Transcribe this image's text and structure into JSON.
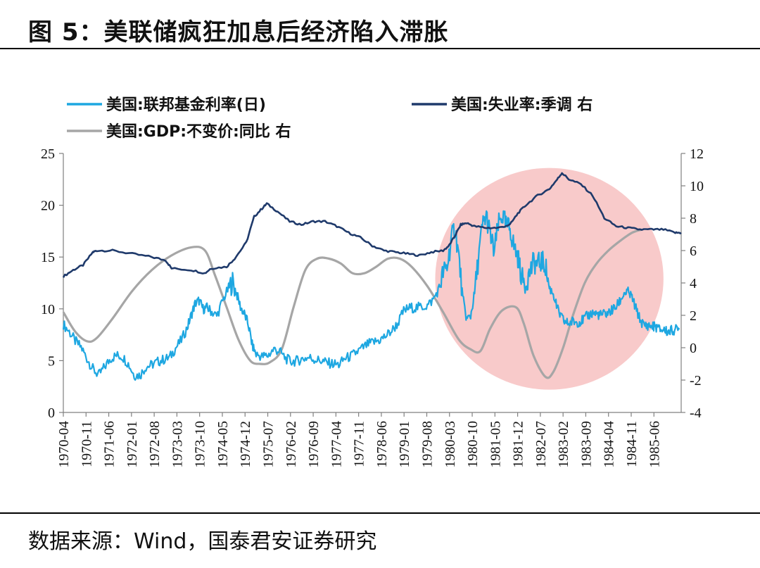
{
  "figure": {
    "title": "图 5：美联储疯狂加息后经济陷入滞胀",
    "source": "数据来源：Wind，国泰君安证券研究"
  },
  "chart_data": {
    "type": "line",
    "colors": {
      "fed_funds": "#1ea7e1",
      "unemployment": "#1f3a6b",
      "gdp": "#a6a6a6",
      "highlight": "#f4a6a6"
    },
    "legend": [
      {
        "key": "fed_funds",
        "label": "美国:联邦基金利率(日)"
      },
      {
        "key": "unemployment",
        "label": "美国:失业率:季调 右"
      },
      {
        "key": "gdp",
        "label": "美国:GDP:不变价:同比 右"
      }
    ],
    "x_tick_labels": [
      "1970-04",
      "1970-11",
      "1971-06",
      "1972-01",
      "1972-08",
      "1973-03",
      "1973-10",
      "1974-05",
      "1974-12",
      "1975-07",
      "1976-02",
      "1976-09",
      "1977-04",
      "1977-11",
      "1978-06",
      "1979-01",
      "1979-08",
      "1980-03",
      "1980-10",
      "1981-05",
      "1981-12",
      "1982-07",
      "1983-02",
      "1983-09",
      "1984-04",
      "1984-11",
      "1985-06"
    ],
    "x_range": [
      1970.25,
      1985.95
    ],
    "left_axis": {
      "ylim": [
        0,
        25
      ],
      "ticks": [
        "0",
        "5",
        "10",
        "15",
        "20",
        "25"
      ]
    },
    "right_axis": {
      "ylim": [
        -4,
        12
      ],
      "ticks": [
        "-4",
        "-2",
        "0",
        "2",
        "4",
        "6",
        "8",
        "10",
        "12"
      ]
    },
    "series": [
      {
        "key": "fed_funds",
        "axis": "left",
        "name": "美国:联邦基金利率(日)",
        "x": [
          1970.25,
          1970.4,
          1970.55,
          1970.7,
          1970.85,
          1971.0,
          1971.15,
          1971.3,
          1971.45,
          1971.6,
          1971.75,
          1971.9,
          1972.05,
          1972.2,
          1972.35,
          1972.5,
          1972.65,
          1972.8,
          1972.95,
          1973.1,
          1973.25,
          1973.4,
          1973.5,
          1973.6,
          1973.7,
          1973.8,
          1973.9,
          1974.0,
          1974.15,
          1974.3,
          1974.45,
          1974.55,
          1974.65,
          1974.75,
          1974.85,
          1974.95,
          1975.05,
          1975.15,
          1975.3,
          1975.45,
          1975.6,
          1975.75,
          1975.9,
          1976.05,
          1976.2,
          1976.35,
          1976.5,
          1976.65,
          1976.8,
          1976.95,
          1977.1,
          1977.25,
          1977.4,
          1977.55,
          1977.7,
          1977.85,
          1978.0,
          1978.15,
          1978.3,
          1978.45,
          1978.6,
          1978.75,
          1978.9,
          1979.05,
          1979.2,
          1979.35,
          1979.5,
          1979.65,
          1979.8,
          1979.9,
          1980.0,
          1980.1,
          1980.2,
          1980.3,
          1980.4,
          1980.5,
          1980.6,
          1980.7,
          1980.8,
          1980.9,
          1981.0,
          1981.1,
          1981.2,
          1981.3,
          1981.4,
          1981.5,
          1981.6,
          1981.7,
          1981.8,
          1981.9,
          1982.0,
          1982.1,
          1982.2,
          1982.3,
          1982.4,
          1982.5,
          1982.6,
          1982.7,
          1982.8,
          1982.9,
          1983.0,
          1983.1,
          1983.2,
          1983.3,
          1983.4,
          1983.5,
          1983.6,
          1983.7,
          1983.8,
          1983.9,
          1984.0,
          1984.1,
          1984.2,
          1984.3,
          1984.4,
          1984.5,
          1984.6,
          1984.7,
          1984.8,
          1984.9,
          1985.0,
          1985.1,
          1985.2,
          1985.3,
          1985.4,
          1985.5,
          1985.6,
          1985.7,
          1985.8,
          1985.9
        ],
        "y": [
          8.5,
          7.8,
          6.9,
          6.3,
          5.2,
          4.2,
          3.6,
          4.4,
          5.2,
          5.5,
          5.4,
          4.7,
          3.6,
          3.6,
          4.4,
          4.6,
          4.9,
          5.1,
          5.3,
          6.2,
          7.0,
          8.2,
          9.4,
          10.5,
          10.8,
          10.0,
          10.1,
          9.8,
          9.3,
          10.8,
          12.0,
          12.6,
          11.5,
          10.2,
          9.5,
          8.5,
          6.5,
          5.6,
          5.4,
          5.5,
          6.1,
          5.9,
          5.2,
          4.9,
          5.0,
          5.2,
          5.3,
          5.1,
          5.0,
          4.8,
          4.7,
          4.6,
          5.2,
          5.4,
          5.8,
          6.2,
          6.6,
          6.8,
          7.0,
          7.4,
          7.9,
          8.6,
          9.8,
          10.1,
          10.1,
          10.2,
          10.3,
          10.9,
          12.0,
          13.5,
          14.0,
          16.5,
          18.0,
          15.0,
          11.0,
          9.0,
          9.3,
          11.5,
          15.0,
          18.0,
          19.0,
          17.0,
          15.5,
          18.0,
          19.1,
          18.0,
          17.8,
          16.0,
          15.0,
          13.0,
          12.4,
          13.5,
          14.5,
          14.3,
          14.6,
          14.2,
          12.0,
          11.5,
          10.0,
          9.2,
          8.7,
          8.6,
          8.8,
          8.7,
          8.8,
          9.1,
          9.4,
          9.6,
          9.5,
          9.4,
          9.5,
          9.6,
          9.9,
          10.2,
          10.8,
          11.5,
          11.6,
          11.1,
          10.0,
          9.0,
          8.4,
          8.4,
          8.3,
          8.3,
          8.0,
          8.0,
          7.8,
          7.9,
          8.0,
          8.0
        ]
      },
      {
        "key": "unemployment",
        "axis": "right",
        "name": "美国:失业率:季调 右",
        "x": [
          1970.25,
          1970.5,
          1970.75,
          1971.0,
          1971.1,
          1971.5,
          1972.0,
          1972.5,
          1972.85,
          1973.0,
          1973.5,
          1973.85,
          1974.0,
          1974.4,
          1974.6,
          1974.9,
          1975.1,
          1975.3,
          1975.42,
          1975.7,
          1976.0,
          1976.3,
          1976.6,
          1976.9,
          1977.2,
          1977.5,
          1977.8,
          1978.1,
          1978.4,
          1978.7,
          1979.0,
          1979.3,
          1979.6,
          1979.9,
          1980.05,
          1980.2,
          1980.35,
          1980.5,
          1980.7,
          1981.0,
          1981.3,
          1981.6,
          1981.8,
          1982.0,
          1982.3,
          1982.6,
          1982.8,
          1982.92,
          1983.1,
          1983.4,
          1983.7,
          1984.0,
          1984.3,
          1984.6,
          1984.9,
          1985.2,
          1985.5,
          1985.8,
          1985.95
        ],
        "y": [
          4.4,
          4.8,
          5.1,
          5.9,
          6.0,
          6.0,
          5.8,
          5.6,
          5.4,
          4.9,
          4.8,
          4.6,
          4.9,
          5.0,
          5.5,
          6.5,
          8.1,
          8.6,
          8.9,
          8.4,
          7.8,
          7.6,
          7.8,
          7.8,
          7.5,
          7.1,
          6.8,
          6.3,
          6.0,
          5.9,
          5.8,
          5.7,
          5.9,
          6.0,
          6.3,
          6.9,
          7.6,
          7.7,
          7.5,
          7.4,
          7.4,
          7.6,
          8.3,
          8.8,
          9.4,
          9.8,
          10.4,
          10.8,
          10.4,
          10.1,
          9.4,
          8.0,
          7.5,
          7.4,
          7.3,
          7.3,
          7.3,
          7.1,
          7.1
        ]
      },
      {
        "key": "gdp",
        "axis": "right",
        "name": "美国:GDP:不变价:同比 右",
        "x": [
          1970.25,
          1970.55,
          1970.85,
          1971.1,
          1971.5,
          1972.0,
          1972.5,
          1973.0,
          1973.5,
          1973.85,
          1974.1,
          1974.4,
          1974.7,
          1975.0,
          1975.25,
          1975.5,
          1975.8,
          1976.1,
          1976.4,
          1976.7,
          1977.0,
          1977.3,
          1977.6,
          1977.9,
          1978.2,
          1978.5,
          1978.8,
          1979.1,
          1979.5,
          1979.9,
          1980.3,
          1980.6,
          1980.85,
          1981.1,
          1981.4,
          1981.75,
          1981.95,
          1982.2,
          1982.5,
          1982.7,
          1982.95,
          1983.2,
          1983.5,
          1983.8,
          1984.1,
          1984.4,
          1984.7,
          1984.95
        ],
        "y": [
          2.2,
          1.0,
          0.4,
          0.6,
          1.8,
          3.5,
          4.8,
          5.7,
          6.2,
          6.0,
          4.5,
          2.5,
          0.5,
          -0.8,
          -1.0,
          -0.9,
          -0.1,
          2.5,
          4.8,
          5.5,
          5.5,
          5.2,
          4.6,
          4.6,
          5.0,
          5.5,
          5.5,
          5.0,
          3.8,
          2.2,
          0.5,
          -0.1,
          -0.2,
          1.2,
          2.3,
          2.5,
          1.5,
          -0.5,
          -1.8,
          -1.5,
          0.0,
          2.0,
          4.0,
          5.2,
          6.0,
          6.6,
          7.1,
          7.3
        ]
      }
    ],
    "highlight_ellipse": {
      "center_x": 1982.6,
      "center_y_left": 12.9,
      "radius_x_years": 2.9,
      "radius_y_left": 10.7
    }
  }
}
